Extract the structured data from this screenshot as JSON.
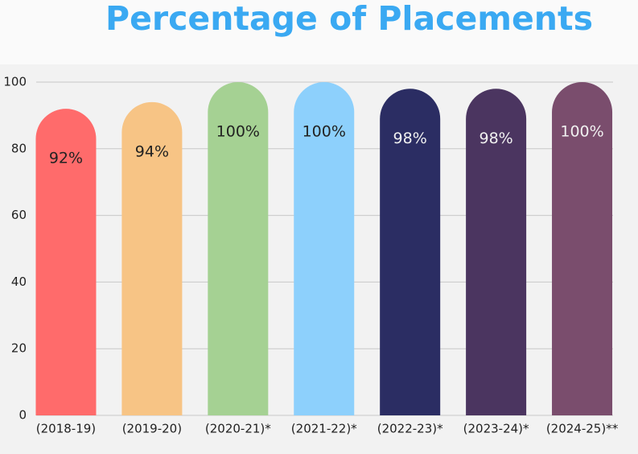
{
  "chart_data": {
    "type": "bar",
    "title": "Percentage of Placements",
    "categories": [
      "(2018-19)",
      "(2019-20)",
      "(2020-21)*",
      "(2021-22)*",
      "(2022-23)*",
      "(2023-24)*",
      "(2024-25)**"
    ],
    "values": [
      92,
      94,
      100,
      100,
      98,
      98,
      100
    ],
    "value_labels": [
      "92%",
      "94%",
      "100%",
      "100%",
      "98%",
      "98%",
      "100%"
    ],
    "colors": [
      "#ff6b6b",
      "#f7c485",
      "#a5d193",
      "#8dd0fc",
      "#2b2d63",
      "#4b3560",
      "#7a4d6d"
    ],
    "value_label_colors": [
      "#222222",
      "#222222",
      "#222222",
      "#222222",
      "#f0f0f0",
      "#f0f0f0",
      "#f0f0f0"
    ],
    "ylim": [
      0,
      100
    ],
    "yticks": [
      0,
      20,
      40,
      60,
      80,
      100
    ],
    "grid": true
  }
}
